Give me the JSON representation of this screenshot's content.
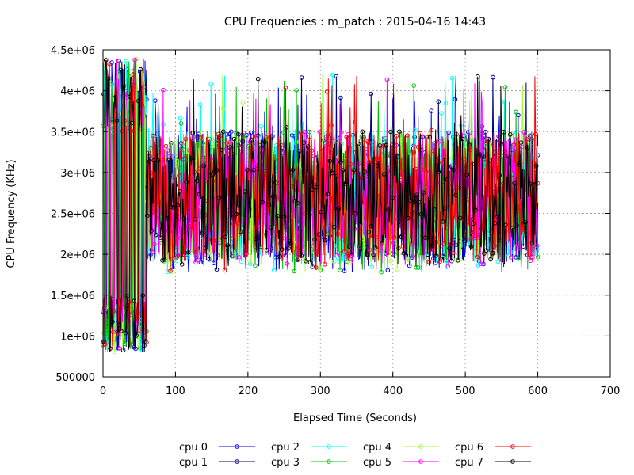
{
  "chart_data": {
    "type": "line",
    "title": "CPU Frequencies : m_patch : 2015-04-16 14:43",
    "xlabel": "Elapsed Time (Seconds)",
    "ylabel": "CPU Frequency (KHz)",
    "xlim": [
      0,
      700
    ],
    "ylim": [
      500000,
      4500000
    ],
    "x_ticks": [
      0,
      100,
      200,
      300,
      400,
      500,
      600,
      700
    ],
    "x_tick_labels": [
      "0",
      "100",
      "200",
      "300",
      "400",
      "500",
      "600",
      "700"
    ],
    "y_ticks": [
      500000,
      1000000,
      1500000,
      2000000,
      2500000,
      3000000,
      3500000,
      4000000,
      4500000
    ],
    "y_tick_labels": [
      "500000",
      "1e+06",
      "1.5e+06",
      "2e+06",
      "2.5e+06",
      "3e+06",
      "3.5e+06",
      "4e+06",
      "4.5e+06"
    ],
    "grid": true,
    "legend_position": "bottom-center",
    "series": [
      {
        "name": "cpu 0",
        "color": "#0000ff"
      },
      {
        "name": "cpu 1",
        "color": "#000080"
      },
      {
        "name": "cpu 2",
        "color": "#00ffff"
      },
      {
        "name": "cpu 3",
        "color": "#00c000"
      },
      {
        "name": "cpu 4",
        "color": "#a0ff40"
      },
      {
        "name": "cpu 5",
        "color": "#ff00ff"
      },
      {
        "name": "cpu 6",
        "color": "#ff0000"
      },
      {
        "name": "cpu 7",
        "color": "#000000"
      }
    ],
    "data_profile": {
      "x_max": 600,
      "sample_step": 1,
      "startup_phase": {
        "x_end": 60,
        "min": 800000,
        "max": 4400000
      },
      "steady_phase": {
        "min": 1900000,
        "max": 3500000,
        "spike_max": 4200000
      }
    },
    "marker": "circle"
  }
}
